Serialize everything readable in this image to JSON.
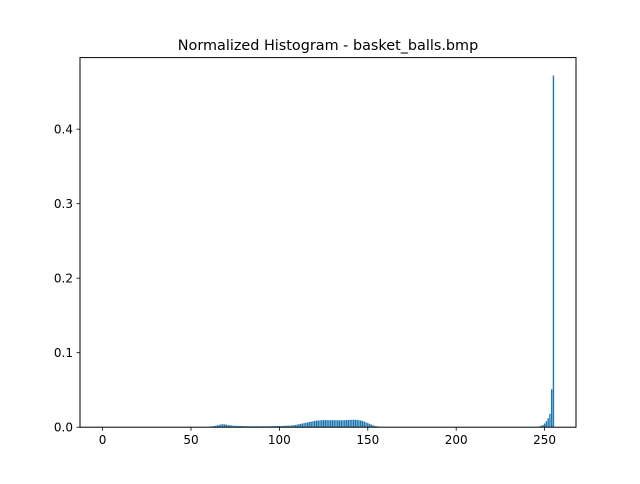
{
  "chart_data": {
    "type": "bar",
    "title": "Normalized Histogram - basket_balls.bmp",
    "xlabel": "",
    "ylabel": "",
    "xlim": [
      -12.75,
      267.75
    ],
    "ylim": [
      0,
      0.4961
    ],
    "xticks": [
      0,
      50,
      100,
      150,
      200,
      250
    ],
    "yticks": [
      0.0,
      0.1,
      0.2,
      0.3,
      0.4
    ],
    "xtick_labels": [
      "0",
      "50",
      "100",
      "150",
      "200",
      "250"
    ],
    "ytick_labels": [
      "0.0",
      "0.1",
      "0.2",
      "0.3",
      "0.4"
    ],
    "grid": false,
    "legend": "none",
    "bar_color": "#1f77b4",
    "x": [
      60,
      61,
      62,
      63,
      64,
      65,
      66,
      67,
      68,
      69,
      70,
      71,
      72,
      73,
      74,
      75,
      76,
      77,
      78,
      79,
      80,
      81,
      82,
      83,
      84,
      85,
      86,
      87,
      88,
      89,
      90,
      91,
      92,
      93,
      94,
      95,
      96,
      97,
      98,
      99,
      100,
      101,
      102,
      103,
      104,
      105,
      106,
      107,
      108,
      109,
      110,
      111,
      112,
      113,
      114,
      115,
      116,
      117,
      118,
      119,
      120,
      121,
      122,
      123,
      124,
      125,
      126,
      127,
      128,
      129,
      130,
      131,
      132,
      133,
      134,
      135,
      136,
      137,
      138,
      139,
      140,
      141,
      142,
      143,
      144,
      145,
      146,
      147,
      148,
      149,
      150,
      151,
      152,
      153,
      154,
      155,
      156,
      157,
      158,
      246,
      247,
      248,
      249,
      250,
      251,
      252,
      253,
      254,
      255
    ],
    "values": [
      0.0004,
      0.0008,
      0.0012,
      0.0016,
      0.002,
      0.0025,
      0.0032,
      0.0038,
      0.004,
      0.0038,
      0.0034,
      0.003,
      0.0026,
      0.0022,
      0.002,
      0.0019,
      0.0018,
      0.0017,
      0.0016,
      0.0015,
      0.0015,
      0.0014,
      0.0014,
      0.0014,
      0.0013,
      0.0013,
      0.0013,
      0.0013,
      0.0013,
      0.0013,
      0.0013,
      0.0013,
      0.0013,
      0.0014,
      0.0014,
      0.0014,
      0.0015,
      0.0015,
      0.0016,
      0.0016,
      0.0017,
      0.0017,
      0.0018,
      0.0019,
      0.002,
      0.0021,
      0.0022,
      0.0023,
      0.0025,
      0.003,
      0.0035,
      0.004,
      0.0045,
      0.005,
      0.0055,
      0.006,
      0.0065,
      0.007,
      0.0075,
      0.008,
      0.0085,
      0.0088,
      0.009,
      0.0092,
      0.0094,
      0.0095,
      0.0095,
      0.0095,
      0.0094,
      0.0093,
      0.0094,
      0.0095,
      0.0094,
      0.0093,
      0.0092,
      0.0093,
      0.0094,
      0.0095,
      0.0096,
      0.0097,
      0.0098,
      0.0099,
      0.01,
      0.0099,
      0.0097,
      0.0094,
      0.009,
      0.0085,
      0.0075,
      0.0065,
      0.0055,
      0.0045,
      0.0035,
      0.0025,
      0.0018,
      0.0012,
      0.0008,
      0.0005,
      0.0003,
      0.0005,
      0.001,
      0.002,
      0.003,
      0.005,
      0.008,
      0.012,
      0.018,
      0.051,
      0.472
    ]
  }
}
